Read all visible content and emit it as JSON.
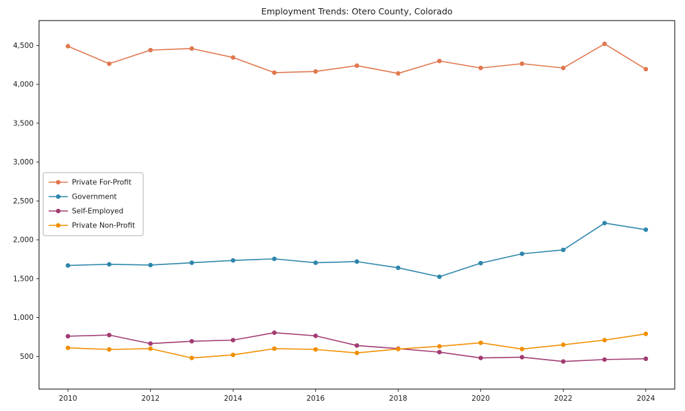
{
  "page": {
    "background": "#ffffff",
    "text_color": "#1a1a1a",
    "axis_color": "#000000",
    "legend_border_color": "#b0b0b0"
  },
  "chart_data": {
    "type": "line",
    "title": "Employment Trends: Otero County, Colorado",
    "xlabel": "",
    "ylabel": "",
    "grid": false,
    "legend_position": "center-left",
    "x": [
      2010,
      2011,
      2012,
      2013,
      2014,
      2015,
      2016,
      2017,
      2018,
      2019,
      2020,
      2021,
      2022,
      2023,
      2024
    ],
    "series": [
      {
        "name": "Private For-Profit",
        "color": "#e0784e",
        "marker": "circle",
        "values": [
          4490,
          4265,
          4440,
          4460,
          4345,
          4150,
          4165,
          4240,
          4140,
          4300,
          4210,
          4265,
          4210,
          4520,
          4195
        ]
      },
      {
        "name": "Government",
        "color": "#2e86ab",
        "marker": "circle",
        "values": [
          1670,
          1685,
          1675,
          1705,
          1735,
          1755,
          1705,
          1720,
          1640,
          1525,
          1700,
          1820,
          1870,
          2215,
          2130
        ]
      },
      {
        "name": "Self-Employed",
        "color": "#a23b72",
        "marker": "circle",
        "values": [
          760,
          775,
          665,
          695,
          710,
          805,
          765,
          640,
          600,
          555,
          480,
          490,
          435,
          460,
          470
        ]
      },
      {
        "name": "Private Non-Profit",
        "color": "#f18f01",
        "marker": "circle",
        "values": [
          610,
          590,
          600,
          480,
          520,
          600,
          590,
          545,
          595,
          630,
          675,
          595,
          650,
          710,
          790
        ]
      }
    ],
    "xticks": [
      2010,
      2012,
      2014,
      2016,
      2018,
      2020,
      2022,
      2024
    ],
    "yticks": [
      500,
      1000,
      1500,
      2000,
      2500,
      3000,
      3500,
      4000,
      4500
    ],
    "ytick_labels": [
      "500",
      "1,000",
      "1,500",
      "2,000",
      "2,500",
      "3,000",
      "3,500",
      "4,000",
      "4,500"
    ],
    "xlim": [
      2009.3,
      2024.7
    ],
    "ylim": [
      80,
      4820
    ]
  }
}
